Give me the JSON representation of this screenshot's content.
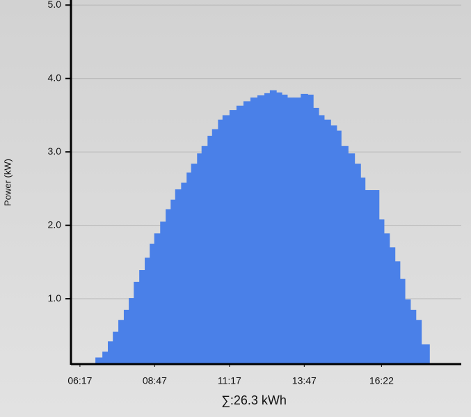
{
  "chart_data": {
    "type": "step-area",
    "y_label": "Power (kW)",
    "total": "∑:26.3 kWh",
    "color": "#4a80e8",
    "grid": true,
    "x": [
      408,
      422,
      433,
      443,
      454,
      465,
      475,
      485,
      496,
      507,
      517,
      526,
      538,
      549,
      559,
      568,
      580,
      591,
      600,
      612,
      621,
      633,
      642,
      654,
      663,
      677,
      691,
      705,
      719,
      733,
      747,
      758,
      771,
      782,
      793,
      806,
      820,
      834,
      845,
      856,
      867,
      880,
      892,
      901,
      915,
      928,
      940,
      949,
      970,
      977,
      987,
      998,
      1009,
      1019,
      1029,
      1040,
      1051,
      1062,
      1074
    ],
    "values": [
      0.2,
      0.28,
      0.42,
      0.55,
      0.71,
      0.85,
      1.01,
      1.23,
      1.39,
      1.56,
      1.75,
      1.89,
      2.05,
      2.22,
      2.35,
      2.49,
      2.58,
      2.72,
      2.84,
      2.98,
      3.08,
      3.22,
      3.31,
      3.44,
      3.5,
      3.57,
      3.63,
      3.69,
      3.74,
      3.77,
      3.8,
      3.84,
      3.81,
      3.78,
      3.74,
      3.74,
      3.79,
      3.78,
      3.6,
      3.5,
      3.44,
      3.36,
      3.29,
      3.08,
      2.98,
      2.84,
      2.65,
      2.48,
      2.48,
      2.08,
      1.89,
      1.7,
      1.51,
      1.27,
      0.99,
      0.85,
      0.71,
      0.38,
      0.38
    ],
    "xlim": [
      359,
      1142
    ],
    "xticks": [
      {
        "value": 377,
        "label": "06:17"
      },
      {
        "value": 527,
        "label": "08:47"
      },
      {
        "value": 677,
        "label": "11:17"
      },
      {
        "value": 827,
        "label": "13:47"
      },
      {
        "value": 982,
        "label": "16:22"
      }
    ],
    "ylim": [
      0.11,
      5.05
    ],
    "yticks": [
      {
        "value": 1,
        "label": "1.0"
      },
      {
        "value": 2,
        "label": "2.0"
      },
      {
        "value": 3,
        "label": "3.0"
      },
      {
        "value": 4,
        "label": "4.0"
      },
      {
        "value": 5,
        "label": "5.0"
      }
    ]
  }
}
